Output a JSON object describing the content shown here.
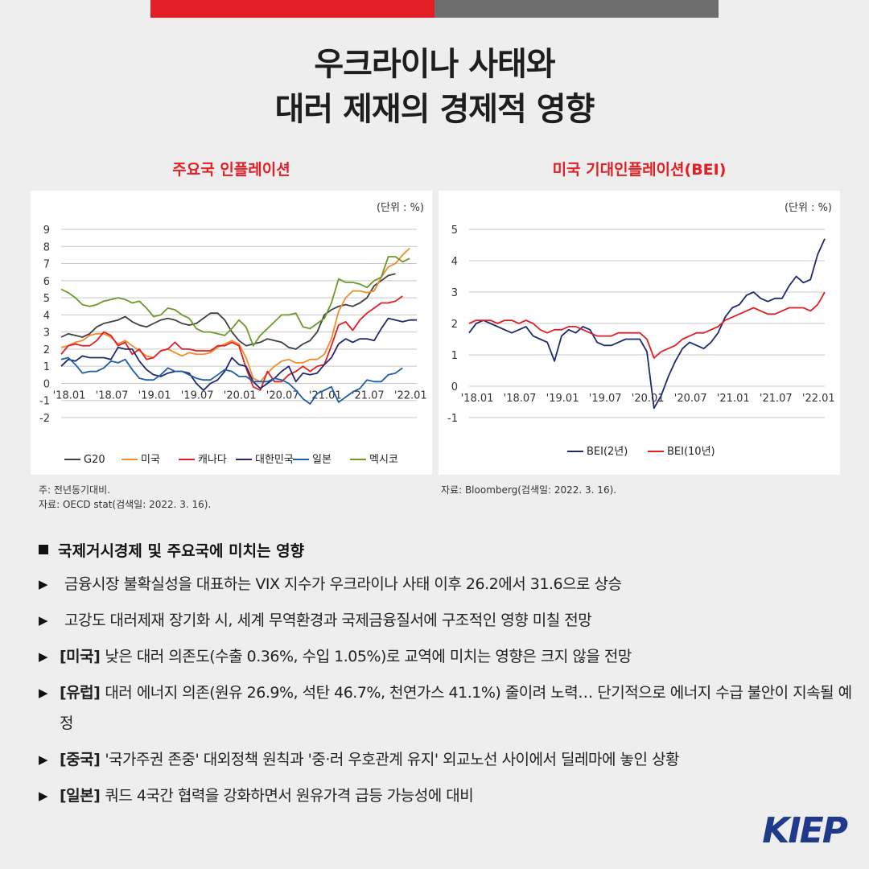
{
  "title": {
    "line1": "우크라이나 사태와",
    "line2": "대러 제재의 경제적 영향"
  },
  "colors": {
    "accent_red": "#e31e24",
    "accent_gray": "#6e6e6e",
    "logo": "#1f3a8a"
  },
  "left_chart_title": "주요국 인플레이션",
  "right_chart_title": "미국 기대인플레이션(BEI)",
  "left_unit": "(단위 : %)",
  "right_unit": "(단위 : %)",
  "left_notes": {
    "note": "주: 전년동기대비.",
    "source": "자료: OECD stat(검색일: 2022. 3. 16)."
  },
  "right_notes": {
    "source": "자료: Bloomberg(검색일: 2022. 3. 16)."
  },
  "chart_data": [
    {
      "type": "line",
      "title": "주요국 인플레이션",
      "ylim": [
        -2,
        9
      ],
      "yticks": [
        9,
        8,
        7,
        6,
        5,
        4,
        3,
        2,
        1,
        0,
        -1,
        -2
      ],
      "xtick_labels": [
        "'18.01",
        "'18.07",
        "'19.01",
        "'19.07",
        "'20.01",
        "'20.07",
        "'21.01",
        "'21.07",
        "'22.01"
      ],
      "xtick_index": [
        0,
        6,
        12,
        18,
        24,
        30,
        36,
        42,
        48
      ],
      "grid": true,
      "legend_position": "bottom",
      "x_start": "2018-01",
      "series": [
        {
          "name": "G20",
          "color": "#404040",
          "values": [
            2.7,
            2.9,
            2.8,
            2.7,
            2.9,
            3.3,
            3.5,
            3.6,
            3.7,
            3.9,
            3.6,
            3.4,
            3.3,
            3.5,
            3.7,
            3.8,
            3.7,
            3.5,
            3.4,
            3.5,
            3.8,
            4.1,
            4.1,
            3.7,
            3.0,
            2.5,
            2.2,
            2.3,
            2.4,
            2.6,
            2.5,
            2.4,
            2.1,
            2.0,
            2.3,
            2.5,
            3.0,
            4.0,
            4.3,
            4.5,
            4.6,
            4.5,
            4.7,
            5.0,
            5.7,
            6.0,
            6.3,
            6.4
          ]
        },
        {
          "name": "미국",
          "color": "#f28c28",
          "values": [
            2.1,
            2.2,
            2.4,
            2.5,
            2.8,
            2.9,
            2.9,
            2.7,
            2.3,
            2.5,
            2.2,
            1.9,
            1.6,
            1.5,
            1.9,
            2.0,
            1.8,
            1.6,
            1.8,
            1.7,
            1.7,
            1.8,
            2.1,
            2.3,
            2.5,
            2.3,
            1.5,
            0.3,
            0.1,
            0.6,
            1.0,
            1.3,
            1.4,
            1.2,
            1.2,
            1.4,
            1.4,
            1.7,
            2.6,
            4.2,
            5.0,
            5.4,
            5.4,
            5.3,
            5.4,
            6.2,
            6.8,
            7.0,
            7.5,
            7.9
          ]
        },
        {
          "name": "캐나다",
          "color": "#e31e24",
          "values": [
            1.7,
            2.2,
            2.3,
            2.2,
            2.2,
            2.5,
            3.0,
            2.8,
            2.2,
            2.4,
            1.7,
            2.0,
            1.4,
            1.5,
            1.9,
            2.0,
            2.4,
            2.0,
            2.0,
            1.9,
            1.9,
            1.9,
            2.2,
            2.2,
            2.4,
            2.2,
            0.9,
            -0.2,
            -0.4,
            0.7,
            0.1,
            0.1,
            0.5,
            0.7,
            1.0,
            0.7,
            1.0,
            1.1,
            2.2,
            3.4,
            3.6,
            3.1,
            3.7,
            4.1,
            4.4,
            4.7,
            4.7,
            4.8,
            5.1
          ]
        },
        {
          "name": "대한민국",
          "color": "#1f2a6e",
          "values": [
            1.0,
            1.4,
            1.3,
            1.6,
            1.5,
            1.5,
            1.5,
            1.4,
            2.1,
            2.0,
            2.0,
            1.3,
            0.8,
            0.5,
            0.4,
            0.6,
            0.7,
            0.7,
            0.6,
            0.0,
            -0.4,
            0.0,
            0.2,
            0.7,
            1.5,
            1.1,
            1.0,
            0.1,
            -0.3,
            0.0,
            0.3,
            0.7,
            1.0,
            0.1,
            0.6,
            0.5,
            0.6,
            1.1,
            1.5,
            2.3,
            2.6,
            2.4,
            2.6,
            2.6,
            2.5,
            3.2,
            3.8,
            3.7,
            3.6,
            3.7,
            3.7
          ]
        },
        {
          "name": "일본",
          "color": "#1f5fa8",
          "values": [
            1.4,
            1.5,
            1.1,
            0.6,
            0.7,
            0.7,
            0.9,
            1.3,
            1.2,
            1.4,
            0.8,
            0.3,
            0.2,
            0.2,
            0.5,
            0.9,
            0.7,
            0.7,
            0.5,
            0.3,
            0.2,
            0.2,
            0.5,
            0.8,
            0.7,
            0.4,
            0.4,
            0.1,
            0.1,
            0.1,
            0.3,
            0.2,
            0.0,
            -0.4,
            -0.9,
            -1.2,
            -0.6,
            -0.4,
            -0.2,
            -1.1,
            -0.8,
            -0.5,
            -0.3,
            0.2,
            0.1,
            0.1,
            0.5,
            0.6,
            0.9
          ]
        },
        {
          "name": "멕시코",
          "color": "#6a9a2a",
          "values": [
            5.5,
            5.3,
            5.0,
            4.6,
            4.5,
            4.6,
            4.8,
            4.9,
            5.0,
            4.9,
            4.7,
            4.8,
            4.4,
            3.9,
            4.0,
            4.4,
            4.3,
            4.0,
            3.8,
            3.2,
            3.0,
            3.0,
            2.9,
            2.8,
            3.2,
            3.7,
            3.3,
            2.2,
            2.8,
            3.2,
            3.6,
            4.0,
            4.0,
            4.1,
            3.3,
            3.2,
            3.5,
            3.8,
            4.7,
            6.1,
            5.9,
            5.9,
            5.8,
            5.6,
            6.0,
            6.2,
            7.4,
            7.4,
            7.1,
            7.3
          ]
        }
      ]
    },
    {
      "type": "line",
      "title": "미국 기대인플레이션(BEI)",
      "ylim": [
        -1,
        5
      ],
      "yticks": [
        5,
        4,
        3,
        2,
        1,
        0,
        -1
      ],
      "xtick_labels": [
        "'18.01",
        "'18.07",
        "'19.01",
        "'19.07",
        "'20.01",
        "'20.07",
        "'21.01",
        "'21.07",
        "'22.01"
      ],
      "xtick_index": [
        0,
        6,
        12,
        18,
        24,
        30,
        36,
        42,
        48
      ],
      "grid": true,
      "legend_position": "bottom",
      "x_start": "2018-01",
      "series": [
        {
          "name": "BEI(2년)",
          "color": "#1f2a6e",
          "values": [
            1.7,
            2.0,
            2.1,
            2.0,
            1.9,
            1.8,
            1.7,
            1.8,
            1.9,
            1.6,
            1.5,
            1.4,
            0.8,
            1.6,
            1.8,
            1.7,
            1.9,
            1.8,
            1.4,
            1.3,
            1.3,
            1.4,
            1.5,
            1.5,
            1.5,
            1.1,
            -0.7,
            -0.3,
            0.3,
            0.8,
            1.2,
            1.4,
            1.3,
            1.2,
            1.4,
            1.7,
            2.2,
            2.5,
            2.6,
            2.9,
            3.0,
            2.8,
            2.7,
            2.8,
            2.8,
            3.2,
            3.5,
            3.3,
            3.4,
            4.2,
            4.7
          ]
        },
        {
          "name": "BEI(10년)",
          "color": "#e31e24",
          "values": [
            2.0,
            2.1,
            2.1,
            2.1,
            2.0,
            2.1,
            2.1,
            2.0,
            2.1,
            2.0,
            1.8,
            1.7,
            1.8,
            1.8,
            1.9,
            1.9,
            1.8,
            1.7,
            1.6,
            1.6,
            1.6,
            1.7,
            1.7,
            1.7,
            1.7,
            1.5,
            0.9,
            1.1,
            1.2,
            1.3,
            1.5,
            1.6,
            1.7,
            1.7,
            1.8,
            1.9,
            2.1,
            2.2,
            2.3,
            2.4,
            2.5,
            2.4,
            2.3,
            2.3,
            2.4,
            2.5,
            2.5,
            2.5,
            2.4,
            2.6,
            3.0
          ]
        }
      ]
    }
  ],
  "section_heading": "국제거시경제 및 주요국에 미치는 영향",
  "bullets": [
    {
      "tag": "",
      "text": "금융시장 불확실성을 대표하는 VIX 지수가 우크라이나 사태 이후 26.2에서 31.6으로 상승"
    },
    {
      "tag": "",
      "text": "고강도 대러제재 장기화 시, 세계 무역환경과 국제금융질서에 구조적인 영향 미칠 전망"
    },
    {
      "tag": "[미국]",
      "text": "낮은 대러 의존도(수출 0.36%, 수입 1.05%)로 교역에 미치는 영향은 크지 않을 전망"
    },
    {
      "tag": "[유럽]",
      "text": "대러 에너지 의존(원유 26.9%, 석탄 46.7%, 천연가스 41.1%) 줄이려 노력… 단기적으로 에너지 수급 불안이 지속될 예정"
    },
    {
      "tag": "[중국]",
      "text": "'국가주권 존중' 대외정책 원칙과 '중·러 우호관계 유지' 외교노선 사이에서 딜레마에 놓인 상황"
    },
    {
      "tag": "[일본]",
      "text": "쿼드 4국간 협력을 강화하면서 원유가격 급등 가능성에 대비"
    }
  ],
  "logo_text": "KIEP"
}
